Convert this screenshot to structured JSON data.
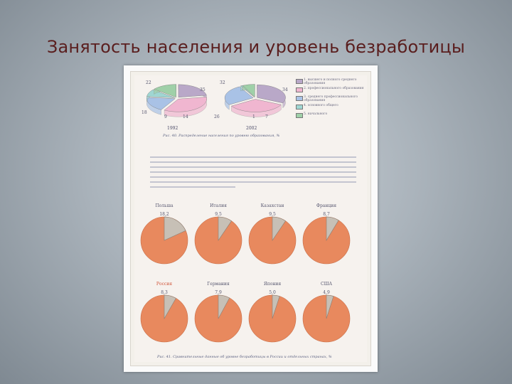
{
  "slide": {
    "title": "Занятость населения и уровень безработицы"
  },
  "figure_top": {
    "left_year": "1992",
    "right_year": "2002",
    "left_values": [
      "22",
      "35",
      "18",
      "9",
      "14"
    ],
    "right_values": [
      "32",
      "34",
      "26",
      "1",
      "7"
    ],
    "legend": [
      {
        "text": "1. высшего и полного среднего образования",
        "color": "#b9a8c8"
      },
      {
        "text": "2. профессионального образования",
        "color": "#f0b6d0"
      },
      {
        "text": "3. среднего профессионального образования",
        "color": "#a9c2e6"
      },
      {
        "text": "4. основного общего",
        "color": "#9fd6d2"
      },
      {
        "text": "5. начального",
        "color": "#9fd0a8"
      }
    ],
    "caption": "Рис. 40. Распределение населения по уровню образования, %"
  },
  "paragraph": {
    "lines": 7
  },
  "pie_grid": {
    "colors": {
      "main": "#e8895e",
      "slice": "#c7c0b6"
    },
    "countries": [
      {
        "name": "Польша",
        "value": "18,2",
        "share": 18.2,
        "highlight": false
      },
      {
        "name": "Италия",
        "value": "9,5",
        "share": 9.5,
        "highlight": false
      },
      {
        "name": "Казахстан",
        "value": "9,5",
        "share": 9.5,
        "highlight": false
      },
      {
        "name": "Франция",
        "value": "8,7",
        "share": 8.7,
        "highlight": false
      },
      {
        "name": "Россия",
        "value": "8,3",
        "share": 8.3,
        "highlight": true
      },
      {
        "name": "Германия",
        "value": "7,9",
        "share": 7.9,
        "highlight": false
      },
      {
        "name": "Япония",
        "value": "5,0",
        "share": 5.0,
        "highlight": false
      },
      {
        "name": "США",
        "value": "4,9",
        "share": 4.9,
        "highlight": false
      }
    ],
    "caption": "Рис. 41. Сравнительные данные об уровне безработицы в России и отдельных странах, %"
  }
}
